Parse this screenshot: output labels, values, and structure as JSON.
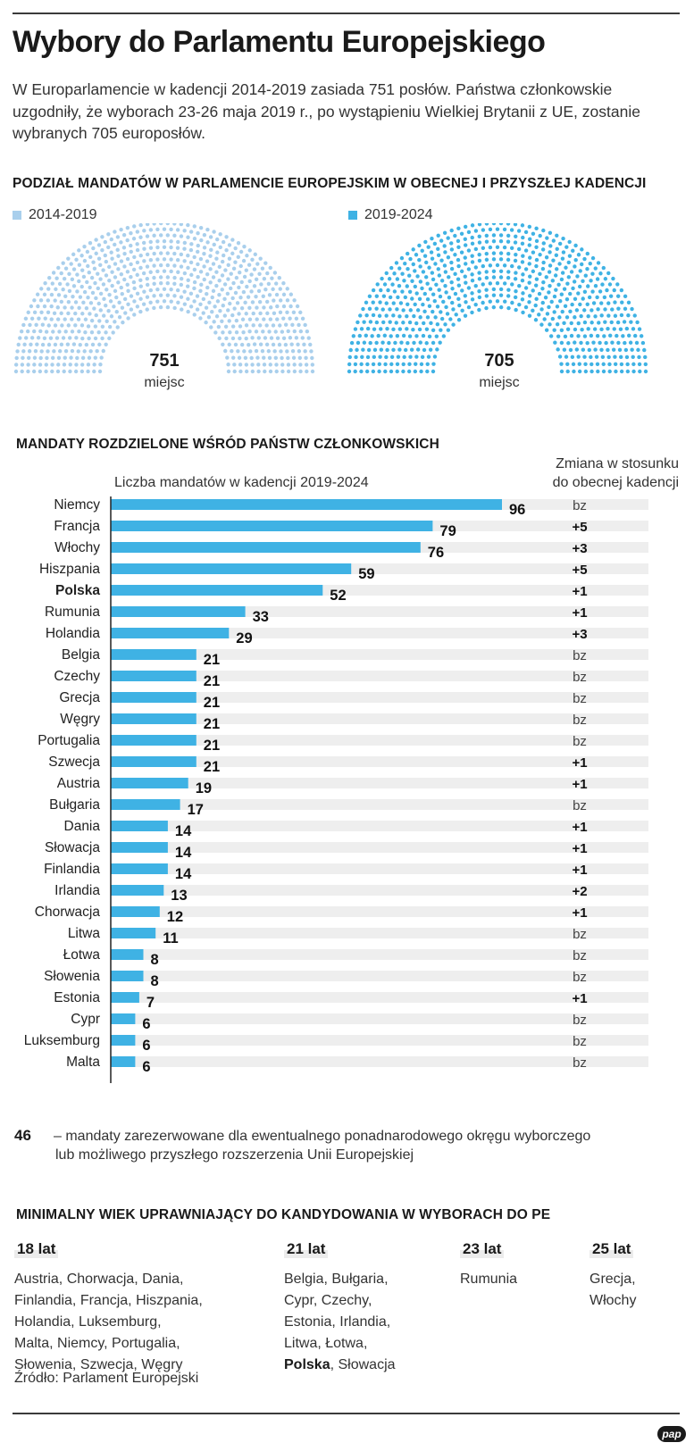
{
  "title": "Wybory do Parlamentu Europejskiego",
  "intro": "W Europarlamencie w kadencji 2014-2019 zasiada 751 posłów. Państwa członkowskie uzgodniły, że wyborach 23-26 maja 2019 r., po wystąpieniu Wielkiej Brytanii z UE, zostanie wybranych 705 europosłów.",
  "seats_section": {
    "heading": "PODZIAŁ MANDATÓW W PARLAMENCIE EUROPEJSKIM W OBECNEJ I PRZYSZŁEJ KADENCJI",
    "left": {
      "legend": "2014-2019",
      "seats": 751,
      "seats_label": "751",
      "unit": "miejsc",
      "color": "#a9cfec"
    },
    "right": {
      "legend": "2019-2024",
      "seats": 705,
      "seats_label": "705",
      "unit": "miejsc",
      "color": "#3fb2e4"
    }
  },
  "bar_section": {
    "heading": "MANDATY ROZDZIELONE WŚRÓD PAŃSTW CZŁONKOWSKICH",
    "col_left": "Liczba mandatów w kadencji 2019-2024",
    "col_right_line1": "Zmiana w stosunku",
    "col_right_line2": "do obecnej kadencji"
  },
  "chart_data": {
    "type": "bar",
    "orientation": "horizontal",
    "title": "Liczba mandatów w kadencji 2019-2024",
    "bar_color": "#3fb2e4",
    "highlighted": [
      "Polska"
    ],
    "categories": [
      "Niemcy",
      "Francja",
      "Włochy",
      "Hiszpania",
      "Polska",
      "Rumunia",
      "Holandia",
      "Belgia",
      "Czechy",
      "Grecja",
      "Węgry",
      "Portugalia",
      "Szwecja",
      "Austria",
      "Bułgaria",
      "Dania",
      "Słowacja",
      "Finlandia",
      "Irlandia",
      "Chorwacja",
      "Litwa",
      "Łotwa",
      "Słowenia",
      "Estonia",
      "Cypr",
      "Luksemburg",
      "Malta"
    ],
    "values": [
      96,
      79,
      76,
      59,
      52,
      33,
      29,
      21,
      21,
      21,
      21,
      21,
      21,
      19,
      17,
      14,
      14,
      14,
      13,
      12,
      11,
      8,
      8,
      7,
      6,
      6,
      6
    ],
    "change": [
      "bz",
      "+5",
      "+3",
      "+5",
      "+1",
      "+1",
      "+3",
      "bz",
      "bz",
      "bz",
      "bz",
      "bz",
      "+1",
      "+1",
      "bz",
      "+1",
      "+1",
      "+1",
      "+2",
      "+1",
      "bz",
      "bz",
      "bz",
      "+1",
      "bz",
      "bz",
      "bz"
    ],
    "xlim": [
      0,
      96
    ]
  },
  "note": {
    "number": "46",
    "line1": "– mandaty zarezerwowane dla ewentualnego ponadnarodowego okręgu wyborczego",
    "line2": "lub możliwego przyszłego rozszerzenia Unii Europejskiej"
  },
  "age_section": {
    "heading": "MINIMALNY WIEK UPRAWNIAJĄCY DO KANDYDOWANIA W WYBORACH DO PE",
    "groups": [
      {
        "age": "18 lat",
        "lines": [
          "Austria, Chorwacja, Dania,",
          "Finlandia, Francja, Hiszpania,",
          "Holandia, Luksemburg,",
          "Malta, Niemcy, Portugalia,",
          "Słowenia, Szwecja, Węgry"
        ]
      },
      {
        "age": "21 lat",
        "lines": [
          "Belgia, Bułgaria,",
          "Cypr, Czechy,",
          "Estonia, Irlandia,",
          "Litwa, Łotwa,"
        ],
        "last_bold": "Polska",
        "last_rest": ", Słowacja"
      },
      {
        "age": "23 lat",
        "lines": [
          "Rumunia"
        ]
      },
      {
        "age": "25 lat",
        "lines": [
          "Grecja,",
          "Włochy"
        ]
      }
    ]
  },
  "source": "Źródło: Parlament Europejski",
  "logo": "pap"
}
